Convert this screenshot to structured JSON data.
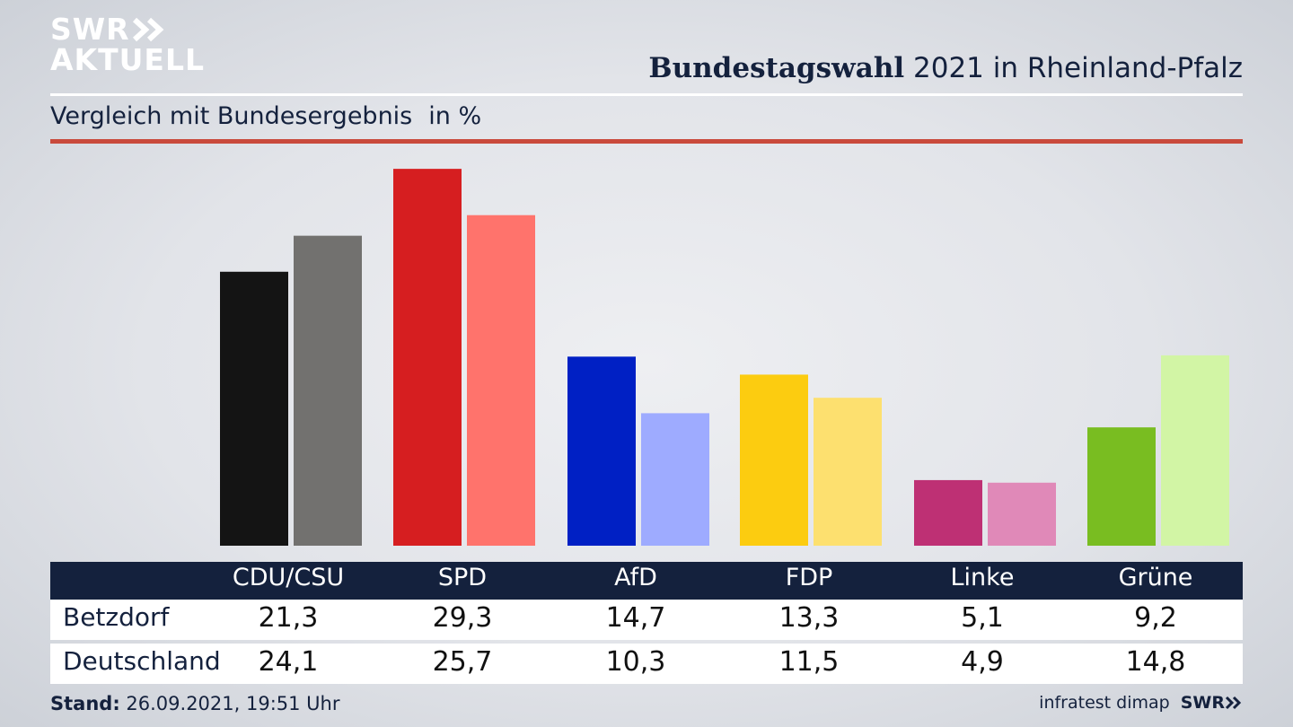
{
  "header": {
    "logo_line1": "SWR",
    "logo_line2": "AKTUELL",
    "title_bold": "Bundestagswahl",
    "title_rest": " 2021 in Rheinland-Pfalz",
    "subtitle": "Vergleich mit Bundesergebnis",
    "unit": "in %"
  },
  "colors": {
    "navy": "#14213d",
    "accent_red_rule": "#c94a3c",
    "local": [
      "#141414",
      "#d61e20",
      "#0020c4",
      "#fccc10",
      "#be3074",
      "#79bd21"
    ],
    "national": [
      "#72716f",
      "#ff736c",
      "#9eabff",
      "#fde06f",
      "#e089b8",
      "#d2f5a5"
    ]
  },
  "chart_data": {
    "type": "bar",
    "categories": [
      "CDU/CSU",
      "SPD",
      "AfD",
      "FDP",
      "Linke",
      "Grüne"
    ],
    "series": [
      {
        "name": "Betzdorf",
        "values": [
          21.3,
          29.3,
          14.7,
          13.3,
          5.1,
          9.2
        ]
      },
      {
        "name": "Deutschland",
        "values": [
          24.1,
          25.7,
          10.3,
          11.5,
          4.9,
          14.8
        ]
      }
    ],
    "value_labels": [
      [
        "21,3",
        "29,3",
        "14,7",
        "13,3",
        "5,1",
        "9,2"
      ],
      [
        "24,1",
        "25,7",
        "10,3",
        "11,5",
        "4,9",
        "14,8"
      ]
    ],
    "ylim": [
      0,
      30
    ],
    "grid": false,
    "legend": "table-below"
  },
  "footer": {
    "stand_label": "Stand:",
    "stand_value": " 26.09.2021, 19:51 Uhr",
    "source": "infratest dimap",
    "brand": "SWR"
  }
}
